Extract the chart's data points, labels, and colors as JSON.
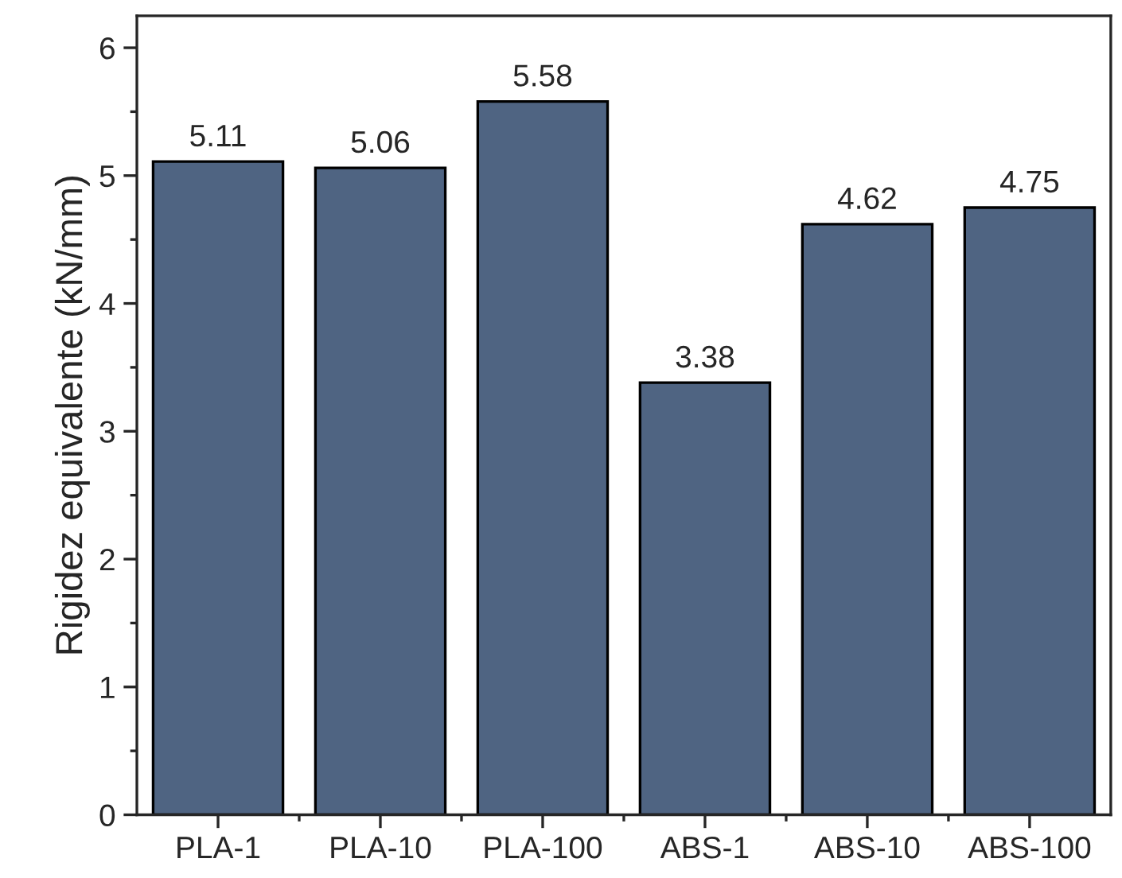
{
  "chart_data": {
    "type": "bar",
    "ylabel": "Rigidez equivalente (kN/mm)",
    "categories": [
      "PLA-1",
      "PLA-10",
      "PLA-100",
      "ABS-1",
      "ABS-10",
      "ABS-100"
    ],
    "values": [
      5.11,
      5.06,
      5.58,
      3.38,
      4.62,
      4.75
    ],
    "color": "#4f6482",
    "ylim": [
      0,
      6.25
    ],
    "yticks": [
      0,
      1,
      2,
      3,
      4,
      5,
      6
    ],
    "data_labels": true,
    "grid": false,
    "legend": false
  }
}
